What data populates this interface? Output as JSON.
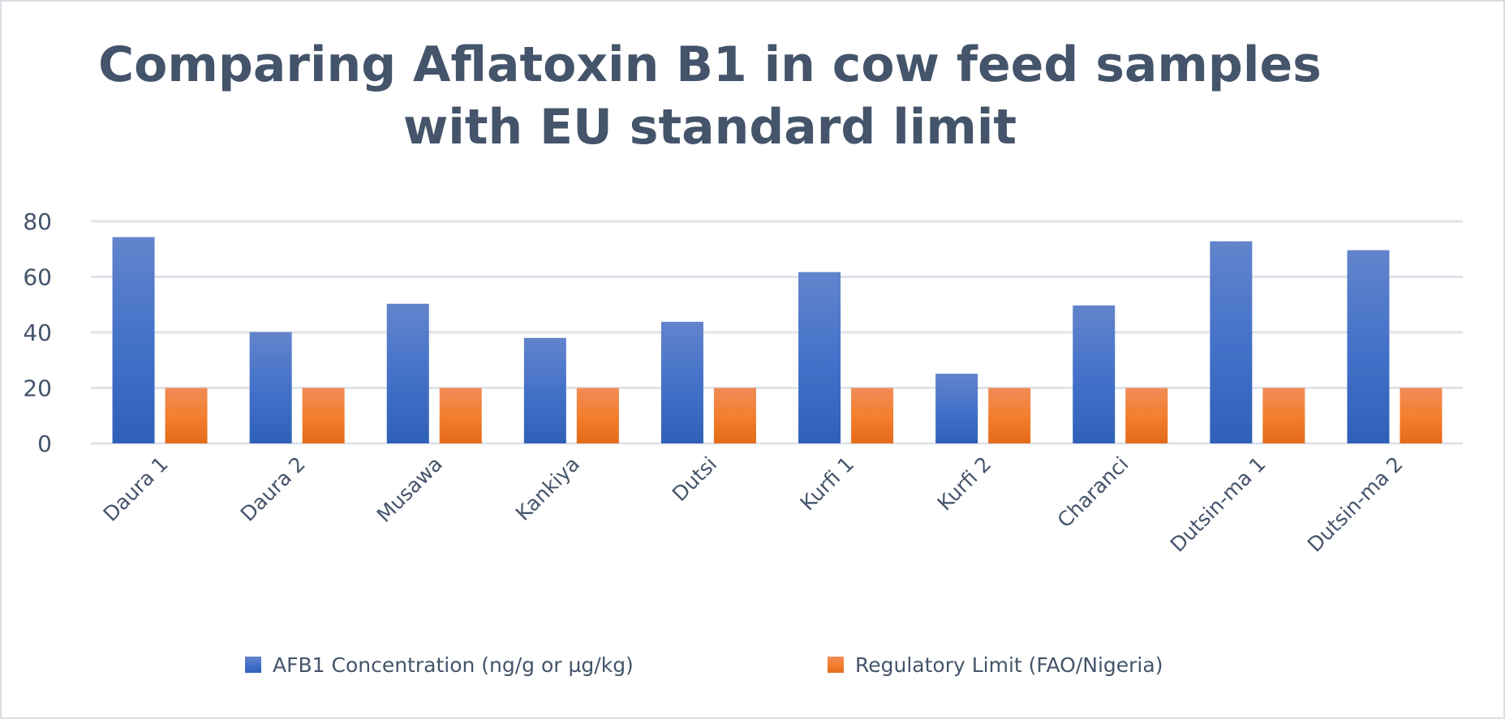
{
  "chart_data": {
    "type": "bar",
    "title": "Comparing Aflatoxin B1 in cow feed samples with EU standard limit",
    "title_lines": [
      "Comparing Aflatoxin B1 in cow feed samples",
      "with EU standard limit"
    ],
    "xlabel": "",
    "ylabel": "",
    "categories": [
      "Daura 1",
      "Daura 2",
      "Musawa",
      "Kankiya",
      "Dutsi",
      "Kurfi 1",
      "Kurfi 2",
      "Charanci",
      "Dutsin-ma 1",
      "Dutsin-ma 2"
    ],
    "series": [
      {
        "name": "AFB1 Concentration (ng/g or µg/kg)",
        "color": "#4472c4",
        "values": [
          74.3,
          40.1,
          50.3,
          38.0,
          43.8,
          61.7,
          25.1,
          49.7,
          72.8,
          69.6
        ]
      },
      {
        "name": "Regulatory Limit (FAO/Nigeria)",
        "color": "#ed7d31",
        "values": [
          20,
          20,
          20,
          20,
          20,
          20,
          20,
          20,
          20,
          20
        ]
      }
    ],
    "ylim": [
      0,
      80
    ],
    "yticks": [
      "0",
      "20",
      "40",
      "60",
      "80"
    ],
    "grid": true,
    "legend_position": "bottom"
  }
}
